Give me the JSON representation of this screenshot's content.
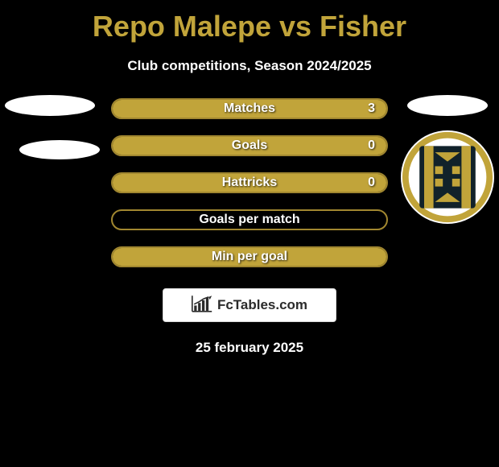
{
  "title": "Repo Malepe vs Fisher",
  "subtitle": "Club competitions, Season 2024/2025",
  "date": "25 february 2025",
  "colors": {
    "background": "#000000",
    "accent": "#c1a43a",
    "bar_border": "#a18730",
    "bar_fill": "#c1a43a",
    "text": "#ffffff"
  },
  "brand": {
    "label": "FcTables.com"
  },
  "stats": [
    {
      "label": "Matches",
      "value": "3",
      "fill_pct": 100
    },
    {
      "label": "Goals",
      "value": "0",
      "fill_pct": 100
    },
    {
      "label": "Hattricks",
      "value": "0",
      "fill_pct": 100
    },
    {
      "label": "Goals per match",
      "value": "",
      "fill_pct": 0
    },
    {
      "label": "Min per goal",
      "value": "",
      "fill_pct": 100
    }
  ],
  "club_badge": {
    "name": "club-crest",
    "primary_color": "#c1a43a",
    "bg_color": "#ffffff",
    "inner_bg": "#11222a"
  }
}
